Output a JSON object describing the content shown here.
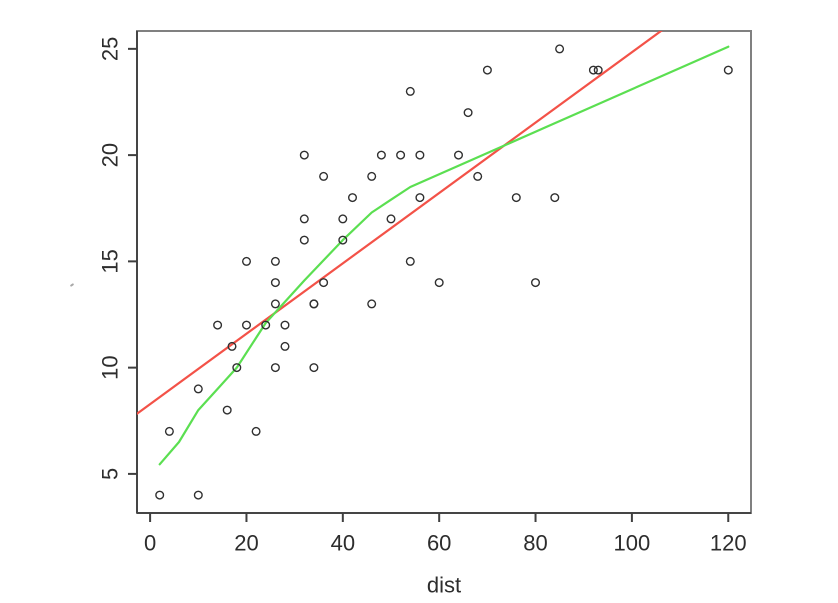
{
  "chart_data": {
    "type": "scatter",
    "title": "",
    "xlabel": "dist",
    "ylabel": "",
    "x_ticks": [
      0,
      20,
      40,
      60,
      80,
      100,
      120
    ],
    "y_ticks": [
      5,
      10,
      15,
      20,
      25
    ],
    "xlim": [
      -2.72,
      124.72
    ],
    "ylim": [
      3.16,
      25.84
    ],
    "grid": false,
    "legend": "none",
    "points": [
      [
        2,
        4
      ],
      [
        10,
        4
      ],
      [
        4,
        7
      ],
      [
        22,
        7
      ],
      [
        16,
        8
      ],
      [
        10,
        9
      ],
      [
        18,
        10
      ],
      [
        26,
        10
      ],
      [
        34,
        10
      ],
      [
        17,
        11
      ],
      [
        28,
        11
      ],
      [
        14,
        12
      ],
      [
        20,
        12
      ],
      [
        24,
        12
      ],
      [
        28,
        12
      ],
      [
        26,
        13
      ],
      [
        34,
        13
      ],
      [
        34,
        13
      ],
      [
        46,
        13
      ],
      [
        26,
        14
      ],
      [
        36,
        14
      ],
      [
        60,
        14
      ],
      [
        80,
        14
      ],
      [
        20,
        15
      ],
      [
        26,
        15
      ],
      [
        54,
        15
      ],
      [
        32,
        16
      ],
      [
        40,
        16
      ],
      [
        32,
        17
      ],
      [
        40,
        17
      ],
      [
        50,
        17
      ],
      [
        42,
        18
      ],
      [
        56,
        18
      ],
      [
        76,
        18
      ],
      [
        84,
        18
      ],
      [
        36,
        19
      ],
      [
        46,
        19
      ],
      [
        68,
        19
      ],
      [
        32,
        20
      ],
      [
        48,
        20
      ],
      [
        52,
        20
      ],
      [
        56,
        20
      ],
      [
        64,
        20
      ],
      [
        66,
        22
      ],
      [
        54,
        23
      ],
      [
        70,
        24
      ],
      [
        92,
        24
      ],
      [
        93,
        24
      ],
      [
        120,
        24
      ],
      [
        85,
        25
      ]
    ],
    "fit_lines": [
      {
        "id": "linear-regression-line",
        "style": "straight",
        "color": "#f35248",
        "slope": 0.16557,
        "intercept": 8.2839
      },
      {
        "id": "lowess-smoother-line",
        "style": "polyline",
        "color": "#5bdf51",
        "points": [
          [
            2,
            5.45
          ],
          [
            6,
            6.5
          ],
          [
            10,
            8.0
          ],
          [
            14,
            9.0
          ],
          [
            18,
            10.0
          ],
          [
            24,
            12.1
          ],
          [
            32,
            14.1
          ],
          [
            40,
            16.0
          ],
          [
            46,
            17.3
          ],
          [
            50,
            17.9
          ],
          [
            54,
            18.5
          ],
          [
            60,
            19.1
          ],
          [
            70,
            20.1
          ],
          [
            80,
            21.1
          ],
          [
            90,
            22.1
          ],
          [
            100,
            23.1
          ],
          [
            110,
            24.1
          ],
          [
            120,
            25.1
          ]
        ]
      }
    ],
    "point_style": {
      "shape": "open-circle",
      "radius": 3.8,
      "stroke": "#2f2f2f"
    },
    "colors": {
      "box": "#808080",
      "axis": "#454545",
      "tick": "#3f3f3f",
      "text": "#2d2d2d",
      "background": "#ffffff"
    }
  }
}
